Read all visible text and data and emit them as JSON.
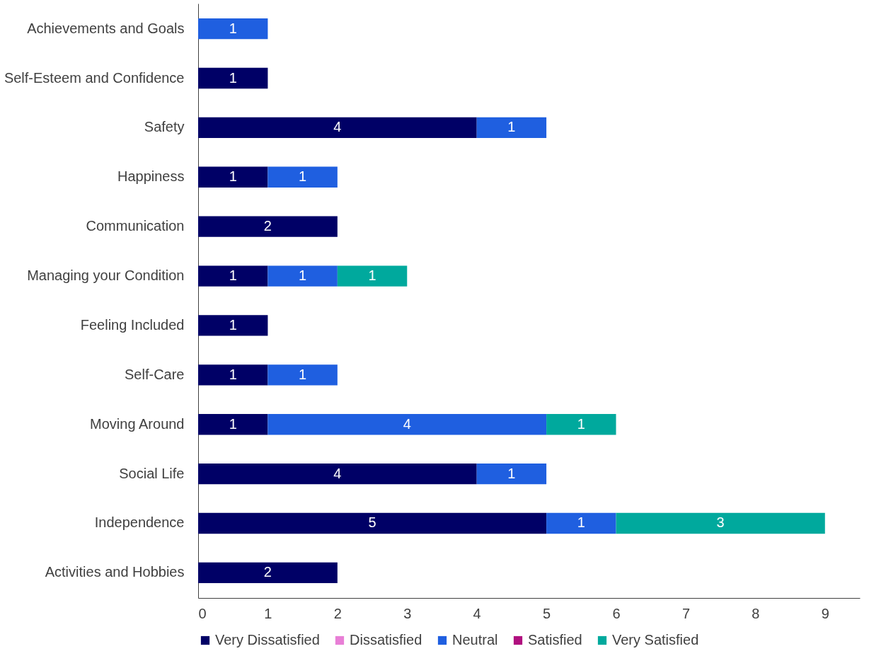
{
  "chart_data": {
    "type": "bar",
    "orientation": "horizontal",
    "stacked": true,
    "data_labels": true,
    "grid": false,
    "legend": "bottom",
    "categories": [
      "Achievements and Goals",
      "Self-Esteem and Confidence",
      "Safety",
      "Happiness",
      "Communication",
      "Managing your Condition",
      "Feeling Included",
      "Self-Care",
      "Moving Around",
      "Social Life",
      "Independence",
      "Activities and Hobbies"
    ],
    "series": [
      {
        "name": "Very Dissatisfied",
        "color": "#000066",
        "values": [
          null,
          1,
          4,
          1,
          2,
          1,
          1,
          1,
          1,
          4,
          5,
          2
        ]
      },
      {
        "name": "Dissatisfied",
        "color": "#e87fd6",
        "values": [
          null,
          null,
          null,
          null,
          null,
          null,
          null,
          null,
          null,
          null,
          null,
          null
        ]
      },
      {
        "name": "Neutral",
        "color": "#1f5fe0",
        "values": [
          1,
          null,
          1,
          1,
          null,
          1,
          null,
          1,
          4,
          1,
          1,
          null
        ]
      },
      {
        "name": "Satisfied",
        "color": "#b0107f",
        "values": [
          null,
          null,
          null,
          null,
          null,
          null,
          null,
          null,
          null,
          null,
          null,
          null
        ]
      },
      {
        "name": "Very Satisfied",
        "color": "#00a99d",
        "values": [
          null,
          null,
          null,
          null,
          null,
          1,
          null,
          null,
          1,
          null,
          3,
          null
        ]
      }
    ],
    "xlim": [
      0,
      9.5
    ],
    "xticks": [
      0,
      1,
      2,
      3,
      4,
      5,
      6,
      7,
      8,
      9
    ]
  }
}
